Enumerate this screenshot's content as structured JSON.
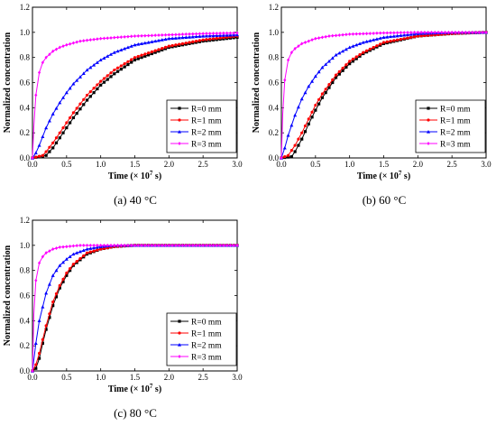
{
  "chart_data": [
    {
      "type": "line",
      "caption_letter": "(a)",
      "caption_text": " 40 °C",
      "xlabel_main": "Time (× 10",
      "xlabel_exp": "7",
      "xlabel_unit": " s)",
      "ylabel": "Normalized concentration",
      "xlim": [
        0,
        3.0
      ],
      "ylim": [
        0,
        1.2
      ],
      "xticks": [
        "0.0",
        "0.5",
        "1.0",
        "1.5",
        "2.0",
        "2.5",
        "3.0"
      ],
      "yticks": [
        "0.0",
        "0.2",
        "0.4",
        "0.6",
        "0.8",
        "1.0",
        "1.2"
      ],
      "legend_position": "bottom-right",
      "series": [
        {
          "name": "R=0 mm",
          "color": "#000000",
          "marker": "square",
          "x": [
            0,
            0.2,
            0.3,
            0.4,
            0.5,
            0.6,
            0.8,
            1.0,
            1.2,
            1.5,
            2.0,
            2.5,
            3.0
          ],
          "y": [
            0,
            0.02,
            0.08,
            0.16,
            0.24,
            0.32,
            0.46,
            0.58,
            0.67,
            0.78,
            0.88,
            0.93,
            0.96
          ]
        },
        {
          "name": "R=1 mm",
          "color": "#ff0000",
          "marker": "circle",
          "x": [
            0,
            0.15,
            0.2,
            0.3,
            0.4,
            0.5,
            0.6,
            0.8,
            1.0,
            1.2,
            1.5,
            2.0,
            2.5,
            3.0
          ],
          "y": [
            0,
            0.02,
            0.05,
            0.12,
            0.2,
            0.28,
            0.36,
            0.5,
            0.61,
            0.7,
            0.8,
            0.89,
            0.94,
            0.97
          ]
        },
        {
          "name": "R=2 mm",
          "color": "#0000ff",
          "marker": "triangle",
          "x": [
            0,
            0.05,
            0.1,
            0.2,
            0.3,
            0.4,
            0.5,
            0.6,
            0.8,
            1.0,
            1.2,
            1.5,
            2.0,
            2.5,
            3.0
          ],
          "y": [
            0,
            0.04,
            0.1,
            0.24,
            0.35,
            0.44,
            0.52,
            0.59,
            0.7,
            0.78,
            0.84,
            0.9,
            0.95,
            0.97,
            0.98
          ]
        },
        {
          "name": "R=3 mm",
          "color": "#ff00ff",
          "marker": "diamond",
          "x": [
            0,
            0.02,
            0.05,
            0.1,
            0.15,
            0.2,
            0.3,
            0.4,
            0.5,
            0.7,
            1.0,
            1.5,
            2.0,
            2.5,
            3.0
          ],
          "y": [
            0,
            0.25,
            0.5,
            0.68,
            0.76,
            0.8,
            0.85,
            0.88,
            0.9,
            0.93,
            0.95,
            0.97,
            0.98,
            0.99,
            0.995
          ]
        }
      ]
    },
    {
      "type": "line",
      "caption_letter": "(b)",
      "caption_text": " 60 °C",
      "xlabel_main": "Time (× 10",
      "xlabel_exp": "7",
      "xlabel_unit": " s)",
      "ylabel": "Normalized concentration",
      "xlim": [
        0,
        3.0
      ],
      "ylim": [
        0,
        1.2
      ],
      "xticks": [
        "0.0",
        "0.5",
        "1.0",
        "1.5",
        "2.0",
        "2.5",
        "3.0"
      ],
      "yticks": [
        "0.0",
        "0.2",
        "0.4",
        "0.6",
        "0.8",
        "1.0",
        "1.2"
      ],
      "legend_position": "bottom-right",
      "series": [
        {
          "name": "R=0 mm",
          "color": "#000000",
          "marker": "square",
          "x": [
            0,
            0.15,
            0.2,
            0.3,
            0.4,
            0.5,
            0.6,
            0.8,
            1.0,
            1.2,
            1.5,
            2.0,
            2.5,
            3.0
          ],
          "y": [
            0,
            0.01,
            0.05,
            0.15,
            0.27,
            0.38,
            0.48,
            0.64,
            0.75,
            0.83,
            0.91,
            0.97,
            0.99,
            1.0
          ]
        },
        {
          "name": "R=1 mm",
          "color": "#ff0000",
          "marker": "circle",
          "x": [
            0,
            0.1,
            0.2,
            0.3,
            0.4,
            0.5,
            0.6,
            0.8,
            1.0,
            1.2,
            1.5,
            2.0,
            2.5,
            3.0
          ],
          "y": [
            0,
            0.02,
            0.1,
            0.2,
            0.31,
            0.42,
            0.51,
            0.66,
            0.77,
            0.84,
            0.92,
            0.97,
            0.99,
            1.0
          ]
        },
        {
          "name": "R=2 mm",
          "color": "#0000ff",
          "marker": "triangle",
          "x": [
            0,
            0.05,
            0.1,
            0.2,
            0.3,
            0.4,
            0.5,
            0.6,
            0.8,
            1.0,
            1.2,
            1.5,
            2.0,
            2.5,
            3.0
          ],
          "y": [
            0,
            0.08,
            0.18,
            0.34,
            0.47,
            0.57,
            0.65,
            0.72,
            0.82,
            0.88,
            0.92,
            0.96,
            0.99,
            1.0,
            1.0
          ]
        },
        {
          "name": "R=3 mm",
          "color": "#ff00ff",
          "marker": "diamond",
          "x": [
            0,
            0.02,
            0.05,
            0.1,
            0.15,
            0.2,
            0.3,
            0.4,
            0.5,
            0.7,
            1.0,
            1.5,
            2.0,
            2.5,
            3.0
          ],
          "y": [
            0,
            0.35,
            0.62,
            0.78,
            0.84,
            0.87,
            0.91,
            0.93,
            0.95,
            0.97,
            0.985,
            0.995,
            1.0,
            1.0,
            1.0
          ]
        }
      ]
    },
    {
      "type": "line",
      "caption_letter": "(c)",
      "caption_text": " 80 °C",
      "xlabel_main": "Time (× 10",
      "xlabel_exp": "7",
      "xlabel_unit": " s)",
      "ylabel": "Normalized concentration",
      "xlim": [
        0,
        3.0
      ],
      "ylim": [
        0,
        1.2
      ],
      "xticks": [
        "0.0",
        "0.5",
        "1.0",
        "1.5",
        "2.0",
        "2.5",
        "3.0"
      ],
      "yticks": [
        "0.0",
        "0.2",
        "0.4",
        "0.6",
        "0.8",
        "1.0",
        "1.2"
      ],
      "legend_position": "bottom-right",
      "series": [
        {
          "name": "R=0 mm",
          "color": "#000000",
          "marker": "square",
          "x": [
            0,
            0.05,
            0.1,
            0.15,
            0.2,
            0.3,
            0.4,
            0.5,
            0.6,
            0.8,
            1.0,
            1.2,
            1.5,
            2.0,
            2.5,
            3.0
          ],
          "y": [
            0,
            0.02,
            0.1,
            0.22,
            0.33,
            0.52,
            0.66,
            0.76,
            0.84,
            0.93,
            0.97,
            0.99,
            1.0,
            1.0,
            1.0,
            1.0
          ]
        },
        {
          "name": "R=1 mm",
          "color": "#ff0000",
          "marker": "circle",
          "x": [
            0,
            0.05,
            0.1,
            0.15,
            0.2,
            0.3,
            0.4,
            0.5,
            0.6,
            0.8,
            1.0,
            1.2,
            1.5,
            2.0,
            2.5,
            3.0
          ],
          "y": [
            0,
            0.05,
            0.14,
            0.25,
            0.36,
            0.55,
            0.68,
            0.78,
            0.85,
            0.94,
            0.97,
            0.99,
            1.0,
            1.0,
            1.0,
            1.0
          ]
        },
        {
          "name": "R=2 mm",
          "color": "#0000ff",
          "marker": "triangle",
          "x": [
            0,
            0.05,
            0.1,
            0.2,
            0.3,
            0.4,
            0.5,
            0.6,
            0.8,
            1.0,
            1.2,
            1.5,
            2.0,
            2.5,
            3.0
          ],
          "y": [
            0,
            0.22,
            0.4,
            0.62,
            0.76,
            0.84,
            0.89,
            0.93,
            0.97,
            0.99,
            1.0,
            1.0,
            1.0,
            1.0,
            1.0
          ]
        },
        {
          "name": "R=3 mm",
          "color": "#ff00ff",
          "marker": "diamond",
          "x": [
            0,
            0.02,
            0.05,
            0.1,
            0.15,
            0.2,
            0.3,
            0.4,
            0.5,
            0.7,
            1.0,
            1.5,
            2.0,
            2.5,
            3.0
          ],
          "y": [
            0,
            0.45,
            0.72,
            0.86,
            0.91,
            0.94,
            0.97,
            0.985,
            0.99,
            1.0,
            1.0,
            1.0,
            1.0,
            1.0,
            1.0
          ]
        }
      ]
    }
  ]
}
